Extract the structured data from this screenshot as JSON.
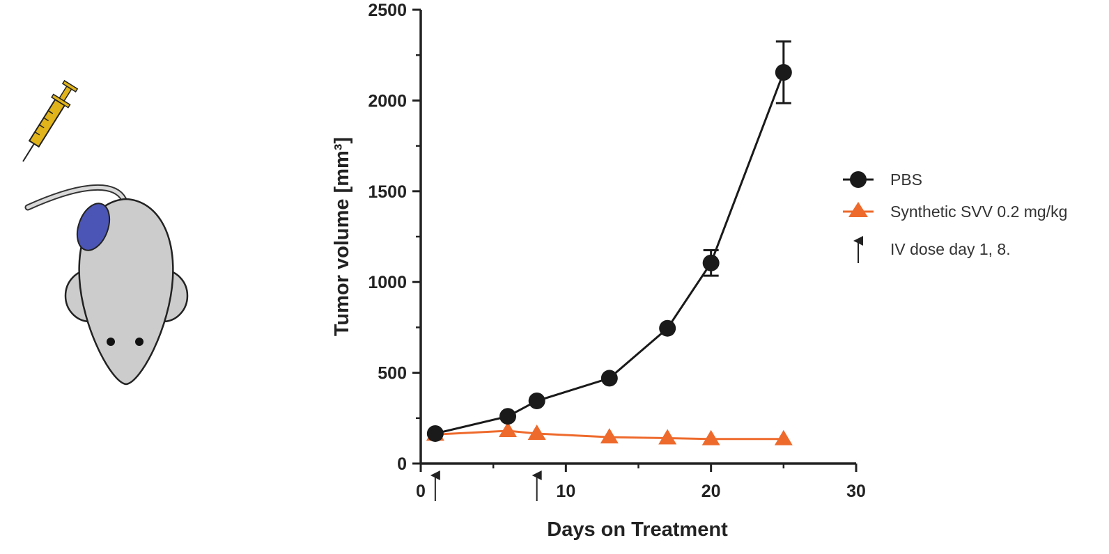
{
  "chart_data": {
    "type": "line",
    "xlabel": "Days on Treatment",
    "ylabel": "Tumor volume [mm³]",
    "xlim": [
      0,
      30
    ],
    "ylim": [
      0,
      2500
    ],
    "xticks": [
      0,
      10,
      20,
      30
    ],
    "yticks": [
      0,
      500,
      1000,
      1500,
      2000,
      2500
    ],
    "grid": false,
    "legend_position": "right",
    "series": [
      {
        "name": "PBS",
        "color": "#1a1a1a",
        "marker": "circle",
        "x": [
          1,
          6,
          8,
          13,
          17,
          20,
          25
        ],
        "y": [
          165,
          260,
          345,
          470,
          745,
          1105,
          2155
        ],
        "error": [
          0,
          0,
          0,
          0,
          0,
          70,
          170
        ]
      },
      {
        "name": "Synthetic SVV 0.2 mg/kg",
        "color": "#ee6a2c",
        "marker": "triangle",
        "x": [
          1,
          6,
          8,
          13,
          17,
          20,
          25
        ],
        "y": [
          160,
          180,
          165,
          145,
          140,
          135,
          135
        ],
        "error": [
          0,
          0,
          0,
          0,
          0,
          0,
          0
        ]
      }
    ],
    "dose_arrows": {
      "label": "IV dose day 1, 8.",
      "days": [
        1,
        8
      ]
    }
  },
  "illustration": {
    "subject": "mouse-with-tumor",
    "tumor_color": "#4b55b5",
    "syringe_color": "#e0b41a",
    "body_color": "#cccccc"
  }
}
